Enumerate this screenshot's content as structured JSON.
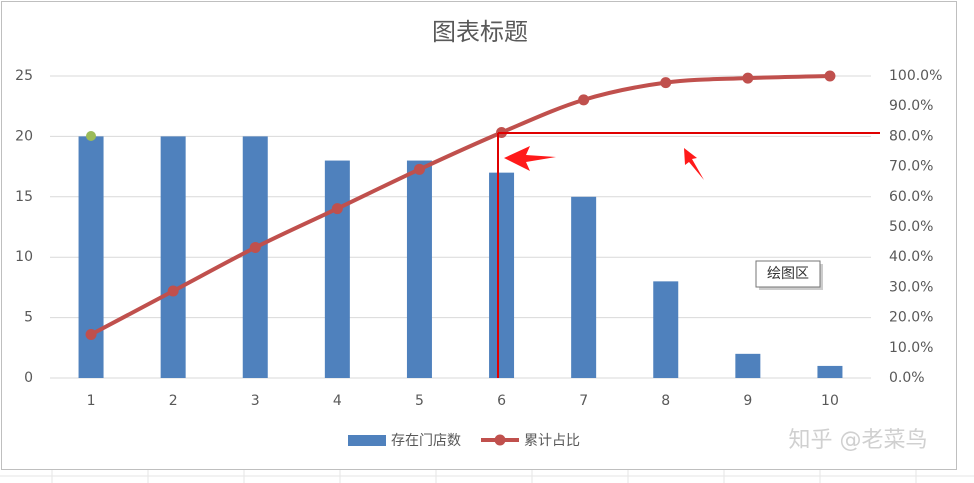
{
  "chart_data": {
    "type": "combo",
    "title": "图表标题",
    "categories": [
      "1",
      "2",
      "3",
      "4",
      "5",
      "6",
      "7",
      "8",
      "9",
      "10"
    ],
    "series": [
      {
        "name": "存在门店数",
        "type": "bar",
        "color": "#4f81bd",
        "values": [
          20,
          20,
          20,
          18,
          18,
          17,
          15,
          8,
          2,
          1
        ]
      },
      {
        "name": "累计占比",
        "type": "line",
        "axis": "y2",
        "color": "#c0504d",
        "values": [
          14.4,
          28.8,
          43.2,
          56.1,
          69.1,
          81.3,
          92.1,
          97.8,
          99.3,
          100
        ]
      }
    ],
    "ylim": [
      0,
      25
    ],
    "yticks": [
      0,
      5,
      10,
      15,
      20,
      25
    ],
    "y2lim": [
      0,
      100
    ],
    "y2ticks": [
      {
        "value": 0,
        "label": "0.0%"
      },
      {
        "value": 10,
        "label": "10.0%"
      },
      {
        "value": 20,
        "label": "20.0%"
      },
      {
        "value": 30,
        "label": "30.0%"
      },
      {
        "value": 40,
        "label": "40.0%"
      },
      {
        "value": 50,
        "label": "50.0%"
      },
      {
        "value": 60,
        "label": "60.0%"
      },
      {
        "value": 70,
        "label": "70.0%"
      },
      {
        "value": 80,
        "label": "80.0%"
      },
      {
        "value": 90,
        "label": "90.0%"
      },
      {
        "value": 100,
        "label": "100.0%"
      }
    ],
    "grid": true,
    "legend": "bottom",
    "tooltip": "绘图区",
    "watermark": "知乎 @老菜鸟"
  }
}
